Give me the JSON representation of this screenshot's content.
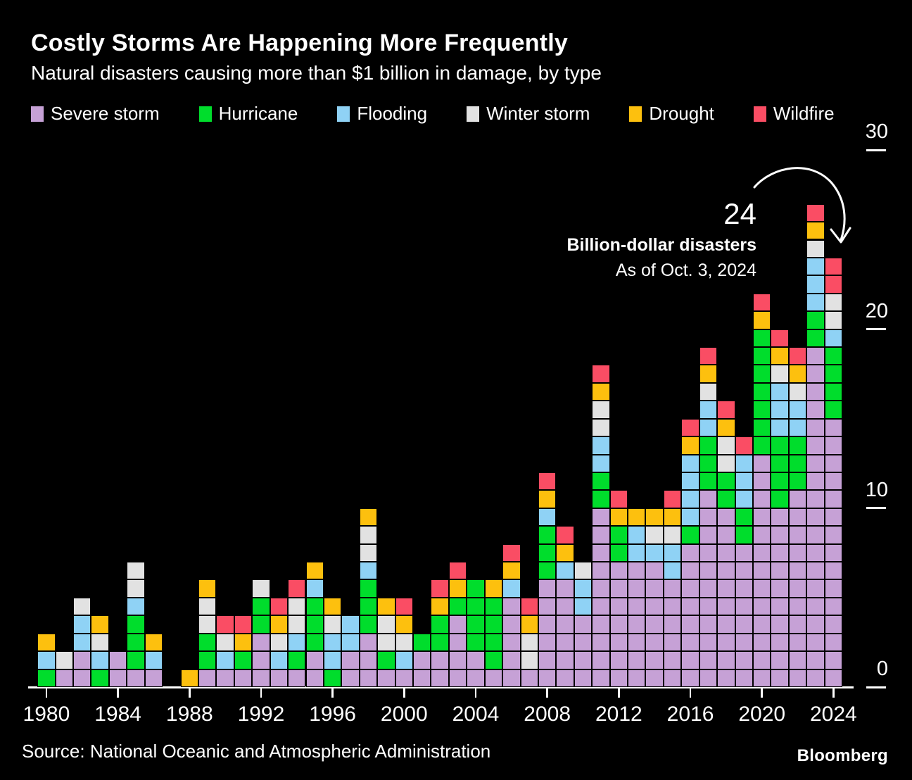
{
  "title": "Costly Storms Are Happening More Frequently",
  "subtitle": "Natural disasters causing more than $1 billion in damage, by type",
  "legend": [
    {
      "label": "Severe storm",
      "color": "#c6a1d6"
    },
    {
      "label": "Hurricane",
      "color": "#00dd2c"
    },
    {
      "label": "Flooding",
      "color": "#8fd2f5"
    },
    {
      "label": "Winter storm",
      "color": "#e2e2e2"
    },
    {
      "label": "Drought",
      "color": "#fdc00e"
    },
    {
      "label": "Wildfire",
      "color": "#fa4d64"
    }
  ],
  "annotation": {
    "value": "24",
    "line1": "Billion-dollar disasters",
    "line2": "As of Oct. 3, 2024"
  },
  "chart_data": {
    "type": "bar",
    "stacked": true,
    "unit_note": "each block = 1 disaster event",
    "title": "Natural disasters causing more than $1 billion in damage, by type",
    "xlabel": "",
    "ylabel": "",
    "ylim": [
      0,
      30
    ],
    "y_ticks": [
      0,
      10,
      20,
      30
    ],
    "x_tick_years": [
      1980,
      1984,
      1988,
      1992,
      1996,
      2000,
      2004,
      2008,
      2012,
      2016,
      2020,
      2024
    ],
    "categories": [
      1980,
      1981,
      1982,
      1983,
      1984,
      1985,
      1986,
      1987,
      1988,
      1989,
      1990,
      1991,
      1992,
      1993,
      1994,
      1995,
      1996,
      1997,
      1998,
      1999,
      2000,
      2001,
      2002,
      2003,
      2004,
      2005,
      2006,
      2007,
      2008,
      2009,
      2010,
      2011,
      2012,
      2013,
      2014,
      2015,
      2016,
      2017,
      2018,
      2019,
      2020,
      2021,
      2022,
      2023,
      2024
    ],
    "series": [
      {
        "name": "Severe storm",
        "color": "#c6a1d6",
        "values": [
          0,
          1,
          2,
          0,
          2,
          1,
          1,
          0,
          0,
          1,
          1,
          1,
          3,
          1,
          1,
          2,
          0,
          2,
          3,
          1,
          1,
          2,
          2,
          4,
          2,
          1,
          5,
          1,
          6,
          6,
          4,
          10,
          7,
          7,
          7,
          6,
          8,
          11,
          10,
          8,
          13,
          10,
          11,
          19,
          15
        ]
      },
      {
        "name": "Hurricane",
        "color": "#00dd2c",
        "values": [
          1,
          0,
          0,
          1,
          0,
          3,
          0,
          0,
          0,
          2,
          0,
          1,
          2,
          0,
          1,
          3,
          1,
          0,
          3,
          1,
          0,
          1,
          2,
          1,
          4,
          4,
          0,
          0,
          3,
          0,
          0,
          2,
          2,
          0,
          0,
          0,
          1,
          3,
          2,
          2,
          7,
          4,
          3,
          2,
          4
        ]
      },
      {
        "name": "Flooding",
        "color": "#8fd2f5",
        "values": [
          1,
          0,
          2,
          1,
          0,
          1,
          1,
          0,
          0,
          0,
          1,
          0,
          0,
          1,
          1,
          1,
          2,
          2,
          1,
          0,
          1,
          0,
          0,
          0,
          0,
          0,
          1,
          0,
          1,
          1,
          2,
          2,
          0,
          2,
          1,
          2,
          4,
          2,
          0,
          3,
          0,
          3,
          2,
          3,
          1
        ]
      },
      {
        "name": "Winter storm",
        "color": "#e2e2e2",
        "values": [
          0,
          1,
          1,
          1,
          0,
          2,
          0,
          0,
          0,
          2,
          1,
          0,
          1,
          1,
          2,
          0,
          1,
          0,
          2,
          2,
          1,
          0,
          0,
          0,
          0,
          0,
          0,
          2,
          0,
          0,
          1,
          2,
          0,
          0,
          1,
          1,
          0,
          1,
          2,
          0,
          0,
          1,
          1,
          1,
          2
        ]
      },
      {
        "name": "Drought",
        "color": "#fdc00e",
        "values": [
          1,
          0,
          0,
          1,
          0,
          0,
          1,
          0,
          1,
          1,
          0,
          1,
          0,
          1,
          0,
          1,
          1,
          0,
          1,
          1,
          1,
          0,
          1,
          1,
          0,
          1,
          1,
          1,
          1,
          1,
          0,
          1,
          1,
          1,
          1,
          1,
          1,
          1,
          1,
          0,
          1,
          1,
          1,
          1,
          0
        ]
      },
      {
        "name": "Wildfire",
        "color": "#fa4d64",
        "values": [
          0,
          0,
          0,
          0,
          0,
          0,
          0,
          0,
          0,
          0,
          1,
          1,
          0,
          1,
          1,
          0,
          0,
          0,
          0,
          0,
          1,
          0,
          1,
          1,
          0,
          0,
          1,
          1,
          1,
          1,
          0,
          1,
          1,
          0,
          0,
          1,
          1,
          1,
          1,
          1,
          1,
          1,
          1,
          1,
          2
        ]
      }
    ],
    "totals_by_year": [
      3,
      2,
      5,
      4,
      2,
      7,
      3,
      0,
      1,
      6,
      4,
      4,
      6,
      5,
      6,
      7,
      5,
      4,
      10,
      5,
      5,
      3,
      6,
      7,
      6,
      6,
      8,
      5,
      12,
      9,
      7,
      18,
      11,
      10,
      10,
      11,
      15,
      19,
      16,
      14,
      22,
      20,
      19,
      27,
      24
    ],
    "legend_position": "top",
    "grid": false
  },
  "footer": {
    "source": "Source: National Oceanic and Atmospheric Administration",
    "brand": "Bloomberg"
  }
}
